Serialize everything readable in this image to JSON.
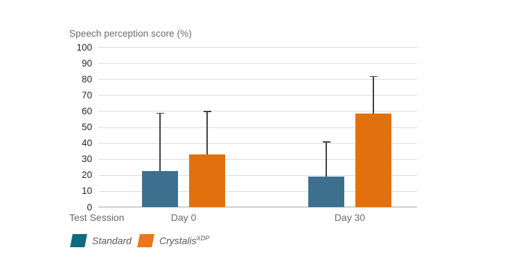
{
  "chart": {
    "title": "Speech perception score (%)",
    "x_axis_title": "Test Session"
  },
  "legend": {
    "items": [
      {
        "label": "Standard",
        "sup": "",
        "color": "#0c6a82"
      },
      {
        "label": "Crystalis",
        "sup": "XDP",
        "color": "#ee7519"
      }
    ]
  },
  "chart_data": {
    "type": "bar",
    "title": "Speech perception score (%)",
    "xlabel": "Test Session",
    "ylabel": "Speech perception score (%)",
    "categories": [
      "Day 0",
      "Day 30"
    ],
    "series": [
      {
        "name": "Standard",
        "values": [
          22.5,
          19
        ],
        "error_upper": [
          59,
          41
        ],
        "color": "#3d6f8e",
        "legend_color": "#0c6a82"
      },
      {
        "name": "Crystalis XDP",
        "values": [
          33,
          58.5
        ],
        "error_upper": [
          60,
          82
        ],
        "color": "#e2700c",
        "legend_color": "#ee7519"
      }
    ],
    "ylim": [
      0,
      100
    ],
    "ytick_step": 10,
    "grid": true,
    "error_bars": "upper-only with top caps",
    "legend_position": "bottom-left",
    "colors": {
      "gridline": "#dcdcdc",
      "axis_line": "#cfcfcf",
      "error_bar": "#3f3f3f",
      "title_text": "#6a6a6a",
      "tick_text": "#262626",
      "axis_text": "#696969",
      "legend_text": "#595959",
      "background": "#ffffff"
    }
  }
}
